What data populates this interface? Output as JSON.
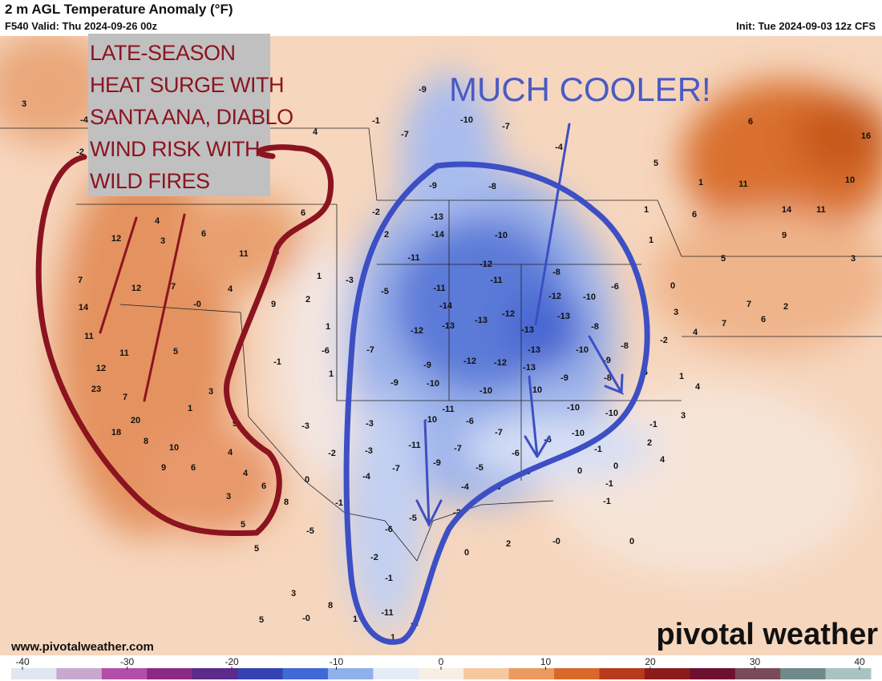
{
  "header": {
    "title": "2 m AGL Temperature Anomaly (°F)",
    "valid": "F540 Valid: Thu 2024-09-26 00z",
    "init": "Init: Tue 2024-09-03 12z CFS"
  },
  "annotations": {
    "west_note": [
      "LATE-SEASON",
      "HEAT SURGE WITH",
      "SANTA ANA, DIABLO",
      "WIND RISK WITH",
      "WILD FIRES"
    ],
    "east_note": "MUCH COOLER!"
  },
  "map": {
    "anomaly_labels": [
      "3",
      "-4",
      "-2",
      "4",
      "12",
      "4",
      "3",
      "6",
      "11",
      "5",
      "6",
      "7",
      "12",
      "7",
      "14",
      "4",
      "-0",
      "9",
      "1",
      "2",
      "11",
      "11",
      "5",
      "12",
      "23",
      "7",
      "3",
      "1",
      "20",
      "18",
      "8",
      "10",
      "9",
      "4",
      "6",
      "9",
      "4",
      "6",
      "3",
      "8",
      "5",
      "5",
      "3",
      "5",
      "-0",
      "8",
      "1",
      "-11",
      "-2",
      "1",
      "-9",
      "-10",
      "-7",
      "-1",
      "-7",
      "-4",
      "-9",
      "-8",
      "-2",
      "-13",
      "-14",
      "-10",
      "2",
      "-11",
      "-12",
      "-11",
      "-8",
      "-3",
      "-5",
      "-11",
      "-14",
      "-12",
      "-10",
      "-6",
      "-13",
      "-13",
      "-12",
      "-13",
      "-12",
      "-8",
      "1",
      "-6",
      "-7",
      "-13",
      "-13",
      "-10",
      "-9",
      "-8",
      "-1",
      "1",
      "-9",
      "-12",
      "-12",
      "-13",
      "-9",
      "-10",
      "-9",
      "-8",
      "-6",
      "-10",
      "10",
      "-11",
      "-10",
      "-10",
      "-3",
      "-10",
      "-6",
      "-3",
      "-7",
      "-10",
      "-2",
      "-3",
      "-11",
      "-7",
      "-6",
      "-1",
      "-7",
      "-9",
      "-5",
      "-6",
      "0",
      "-4",
      "0",
      "-4",
      "-6",
      "-3",
      "0",
      "-1",
      "-1",
      "-2",
      "-5",
      "-5",
      "-6",
      "-1",
      "0",
      "2",
      "-0",
      "0",
      "-2",
      "-1",
      "6",
      "16",
      "5",
      "11",
      "10",
      "1",
      "14",
      "11",
      "1",
      "6",
      "9",
      "5",
      "1",
      "3",
      "0",
      "3",
      "7",
      "6",
      "2",
      "4",
      "7",
      "-2",
      "1",
      "4",
      "3",
      "-1",
      "2",
      "4"
    ]
  },
  "footer": {
    "website": "www.pivotalweather.com",
    "logo": "pivotal weather"
  },
  "colorbar": {
    "ticks": [
      -40,
      -30,
      -20,
      -10,
      0,
      10,
      20,
      30,
      40
    ],
    "colors": [
      "#dfe6ef",
      "#c9a8d0",
      "#b34fa8",
      "#8a2a86",
      "#5b2a8a",
      "#3443b0",
      "#3f6ad6",
      "#8fb0ea",
      "#e4ecf8",
      "#f8efe4",
      "#f5c8a0",
      "#ec9a5f",
      "#d9682b",
      "#b83a1c",
      "#8c1c1c",
      "#6e1030",
      "#7a4a5a",
      "#6f8a8a",
      "#a9c2c2"
    ]
  }
}
